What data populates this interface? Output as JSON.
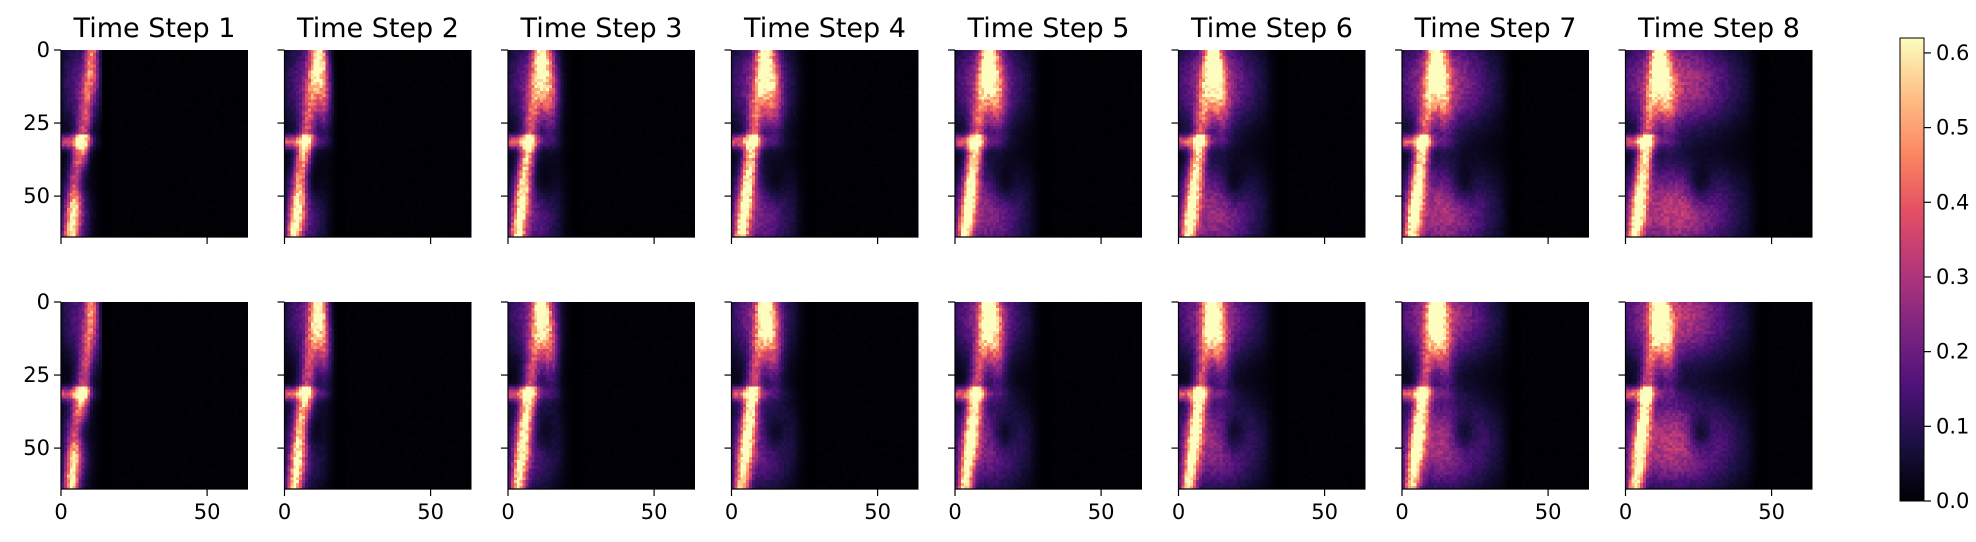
{
  "chart_data": {
    "type": "heatmap",
    "colormap": "magma",
    "panels_grid": {
      "rows": 2,
      "cols": 8
    },
    "titles": [
      "Time Step 1",
      "Time Step 2",
      "Time Step 3",
      "Time Step 4",
      "Time Step 5",
      "Time Step 6",
      "Time Step 7",
      "Time Step 8"
    ],
    "x_ticks": [
      0,
      50
    ],
    "y_ticks": [
      0,
      25,
      50
    ],
    "x_range": [
      0,
      64
    ],
    "y_range": [
      0,
      64
    ],
    "x_ticklabels_shown_on": "bottom row",
    "y_ticklabels_shown_on": "first column",
    "colorbar": {
      "range": [
        0.0,
        0.62
      ],
      "ticks": [
        0.0,
        0.1,
        0.2,
        0.3,
        0.4,
        0.5,
        0.6
      ],
      "tick_labels": [
        "0.0",
        "0.1",
        "0.2",
        "0.3",
        "0.4",
        "0.5",
        "0.6"
      ]
    },
    "activity_extent_x_by_step": [
      14,
      18,
      22,
      26,
      30,
      34,
      38,
      46
    ],
    "rows_description": [
      "top row",
      "bottom row"
    ]
  }
}
